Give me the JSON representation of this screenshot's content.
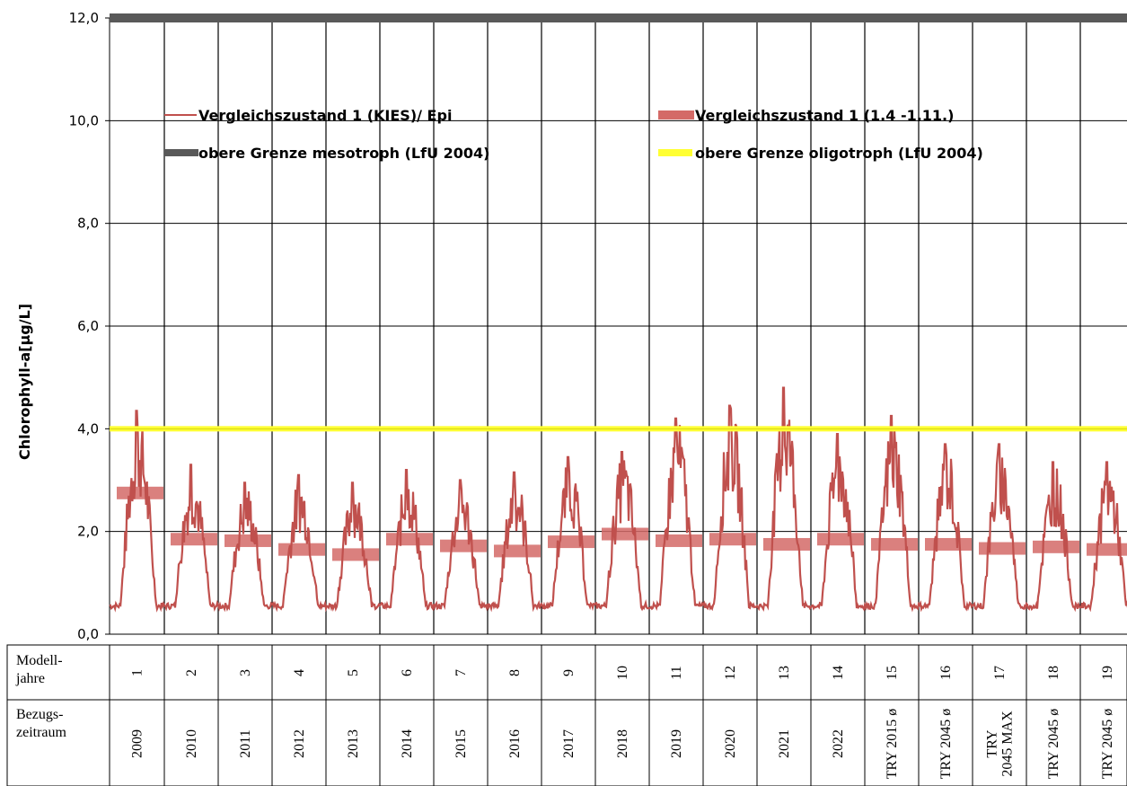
{
  "chart_data": {
    "type": "line",
    "ylabel": "Chlorophyll-a[µg/L]",
    "ylim": [
      0,
      12
    ],
    "yticks": [
      "0,0",
      "2,0",
      "4,0",
      "6,0",
      "8,0",
      "10,0",
      "12,0"
    ],
    "grid": true,
    "legend_position": "top",
    "legend": [
      {
        "label": "Vergleichszustand 1 (KIES)/ Epi",
        "color": "#c0504d",
        "style": "line"
      },
      {
        "label": "Vergleichszustand 1 (1.4 -1.11.)",
        "color": "#d46a67",
        "style": "bar"
      },
      {
        "label": "obere Grenze mesotroph (LfU 2004)",
        "color": "#595959",
        "style": "thick-line"
      },
      {
        "label": "obere Grenze oligotroph  (LfU 2004)",
        "color": "#ffff33",
        "style": "thick-line"
      }
    ],
    "thresholds": [
      {
        "name": "obere Grenze mesotroph (LfU 2004)",
        "value": 12.0,
        "color": "#595959"
      },
      {
        "name": "obere Grenze oligotroph  (LfU 2004)",
        "value": 4.0,
        "color": "#ffff33"
      }
    ],
    "series": [
      {
        "name": "Vergleichszustand 1 (1.4 -1.11.)",
        "type": "bar-segment",
        "color": "#d46a67",
        "values": [
          2.75,
          1.85,
          1.82,
          1.65,
          1.55,
          1.85,
          1.72,
          1.62,
          1.8,
          1.95,
          1.82,
          1.85,
          1.75,
          1.85,
          1.75,
          1.75,
          1.67,
          1.7,
          1.65
        ]
      },
      {
        "name": "Vergleichszustand 1 (KIES)/ Epi",
        "type": "line",
        "color": "#c0504d",
        "baseline": 0.55,
        "peaks": [
          4.35,
          3.3,
          2.95,
          3.1,
          2.95,
          3.2,
          3.0,
          3.15,
          3.45,
          3.55,
          4.2,
          4.45,
          4.8,
          3.9,
          4.25,
          3.7,
          3.7,
          3.35,
          3.35
        ]
      }
    ]
  },
  "table": {
    "row1_label": [
      "Modell-",
      "jahre"
    ],
    "row2_label": [
      "Bezugs-",
      "zeitraum"
    ],
    "model_years": [
      "1",
      "2",
      "3",
      "4",
      "5",
      "6",
      "7",
      "8",
      "9",
      "10",
      "11",
      "12",
      "13",
      "14",
      "15",
      "16",
      "17",
      "18",
      "19"
    ],
    "reference_periods": [
      [
        "2009"
      ],
      [
        "2010"
      ],
      [
        "2011"
      ],
      [
        "2012"
      ],
      [
        "2013"
      ],
      [
        "2014"
      ],
      [
        "2015"
      ],
      [
        "2016"
      ],
      [
        "2017"
      ],
      [
        "2018"
      ],
      [
        "2019"
      ],
      [
        "2020"
      ],
      [
        "2021"
      ],
      [
        "2022"
      ],
      [
        "TRY 2015 ø"
      ],
      [
        "TRY 2045 ø"
      ],
      [
        "TRY",
        "2045 MAX"
      ],
      [
        "TRY 2045 ø"
      ],
      [
        "TRY 2045 ø"
      ]
    ]
  }
}
